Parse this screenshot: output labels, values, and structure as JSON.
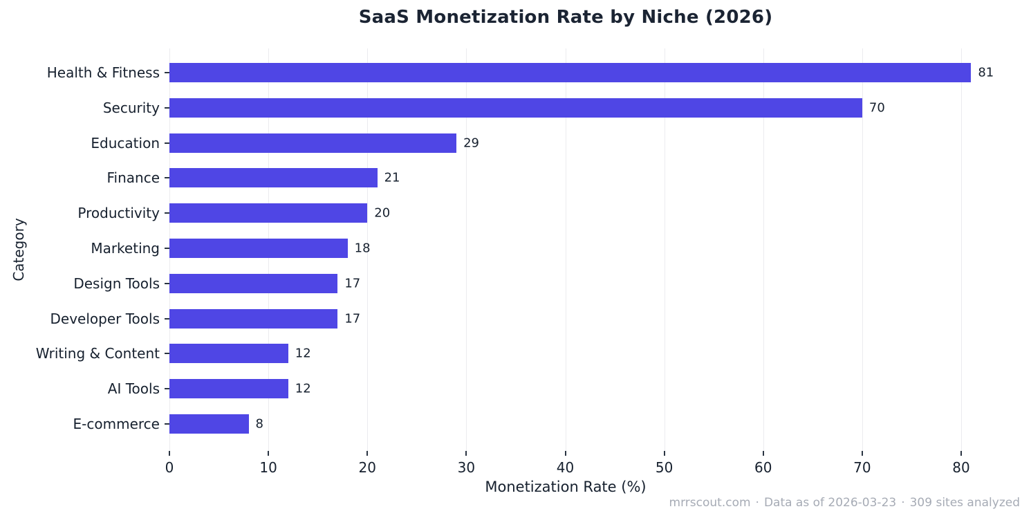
{
  "chart_data": {
    "type": "bar",
    "orientation": "horizontal",
    "title": "SaaS Monetization Rate by Niche (2026)",
    "xlabel": "Monetization Rate (%)",
    "ylabel": "Category",
    "categories": [
      "Health & Fitness",
      "Security",
      "Education",
      "Finance",
      "Productivity",
      "Marketing",
      "Design Tools",
      "Developer Tools",
      "Writing & Content",
      "AI Tools",
      "E-commerce"
    ],
    "values": [
      81,
      70,
      29,
      21,
      20,
      18,
      17,
      17,
      12,
      12,
      8
    ],
    "value_labels_shown": true,
    "xticks": [
      0,
      10,
      20,
      30,
      40,
      50,
      60,
      70,
      80
    ],
    "xlim": [
      0,
      85
    ],
    "grid": "vertical",
    "legend": "none",
    "bar_color": "#4F46E5",
    "gridline_color": "#ebebef",
    "text_color": "#16202e",
    "title_color": "#1b2433"
  },
  "footer": {
    "source": "mrrscout.com",
    "separator": "·",
    "data_as_of": "Data as of 2026-03-23",
    "sample": "309 sites analyzed"
  }
}
